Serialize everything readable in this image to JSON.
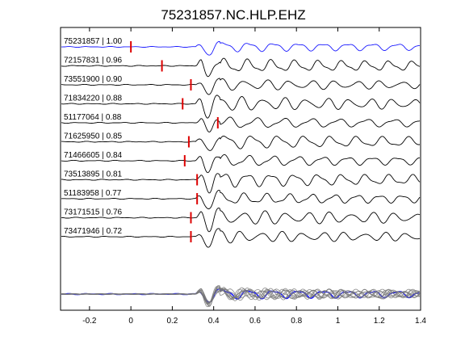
{
  "chart_data": {
    "type": "line",
    "title": "75231857.NC.HLP.EHZ",
    "xlabel": "",
    "ylabel": "",
    "xlim": [
      -0.34,
      1.4
    ],
    "x_ticks": [
      -0.2,
      0,
      0.2,
      0.4,
      0.6,
      0.8,
      1,
      1.2,
      1.4
    ],
    "x_tick_labels": [
      "-0.2",
      "0",
      "0.2",
      "0.4",
      "0.6",
      "0.8",
      "1",
      "1.2",
      "1.4"
    ],
    "grid": false,
    "reference_color": "#1a1aff",
    "trace_color": "#000000",
    "pick_color": "#dd0000",
    "stack_color": "#777777",
    "traces": [
      {
        "label": "75231857 | 1.00",
        "event_id": "75231857",
        "correlation": 1.0,
        "pick_time": 0.0,
        "is_reference": true
      },
      {
        "label": "72157831 | 0.96",
        "event_id": "72157831",
        "correlation": 0.96,
        "pick_time": 0.15
      },
      {
        "label": "73551900 | 0.90",
        "event_id": "73551900",
        "correlation": 0.9,
        "pick_time": 0.29
      },
      {
        "label": "71834220 | 0.88",
        "event_id": "71834220",
        "correlation": 0.88,
        "pick_time": 0.25
      },
      {
        "label": "51177064 | 0.88",
        "event_id": "51177064",
        "correlation": 0.88,
        "pick_time": 0.42
      },
      {
        "label": "71625950 | 0.85",
        "event_id": "71625950",
        "correlation": 0.85,
        "pick_time": 0.28
      },
      {
        "label": "71466605 | 0.84",
        "event_id": "71466605",
        "correlation": 0.84,
        "pick_time": 0.26
      },
      {
        "label": "73513895 | 0.81",
        "event_id": "73513895",
        "correlation": 0.81,
        "pick_time": 0.32
      },
      {
        "label": "51183958 | 0.77",
        "event_id": "51183958",
        "correlation": 0.77,
        "pick_time": 0.32
      },
      {
        "label": "73171515 | 0.76",
        "event_id": "73171515",
        "correlation": 0.76,
        "pick_time": 0.29
      },
      {
        "label": "73471946 | 0.72",
        "event_id": "73471946",
        "correlation": 0.72,
        "pick_time": 0.29
      }
    ],
    "stack": {
      "description_visible": false
    }
  }
}
